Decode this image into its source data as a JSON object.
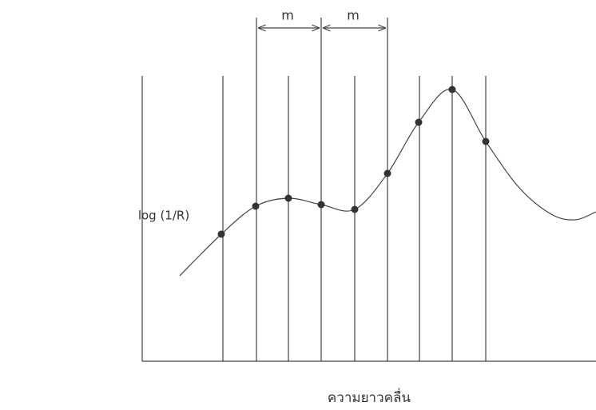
{
  "labels": {
    "y_axis": "log (1/R)",
    "x_axis": "ความยาวคลื่น",
    "spacing": [
      "m",
      "m"
    ]
  }
}
